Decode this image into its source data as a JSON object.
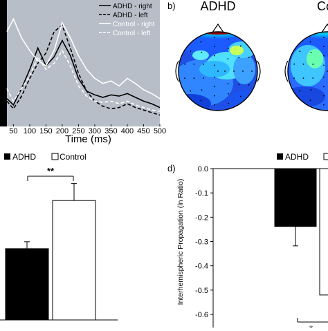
{
  "chart_data": [
    {
      "type": "line",
      "panel": "a",
      "xlabel": "Time (ms)",
      "xlim": [
        30,
        500
      ],
      "ylim": [
        0,
        1
      ],
      "background": "#b7bec8",
      "x_ticks": [
        50,
        100,
        150,
        200,
        250,
        300,
        350,
        400,
        450,
        500
      ],
      "x": [
        30,
        50,
        75,
        100,
        125,
        150,
        175,
        200,
        225,
        250,
        275,
        300,
        325,
        350,
        375,
        400,
        425,
        450,
        475,
        500
      ],
      "series": [
        {
          "name": "ADHD - right",
          "color": "#000000",
          "style": "solid",
          "values": [
            0.22,
            0.17,
            0.3,
            0.45,
            0.62,
            0.48,
            0.55,
            0.68,
            0.56,
            0.38,
            0.28,
            0.25,
            0.23,
            0.25,
            0.24,
            0.26,
            0.23,
            0.2,
            0.18,
            0.15
          ]
        },
        {
          "name": "ADHD - left",
          "color": "#000000",
          "style": "dashed",
          "values": [
            0.2,
            0.14,
            0.24,
            0.38,
            0.5,
            0.58,
            0.75,
            0.8,
            0.62,
            0.42,
            0.28,
            0.2,
            0.16,
            0.14,
            0.15,
            0.18,
            0.15,
            0.13,
            0.11,
            0.09
          ]
        },
        {
          "name": "Control - right",
          "color": "#ffffff",
          "style": "solid",
          "values": [
            0.75,
            0.85,
            0.7,
            0.6,
            0.52,
            0.48,
            0.6,
            0.82,
            0.7,
            0.56,
            0.45,
            0.38,
            0.34,
            0.36,
            0.32,
            0.38,
            0.34,
            0.29,
            0.26,
            0.22
          ]
        },
        {
          "name": "Control - left",
          "color": "#ffffff",
          "style": "dashed",
          "values": [
            0.3,
            0.2,
            0.3,
            0.4,
            0.55,
            0.45,
            0.5,
            0.6,
            0.48,
            0.32,
            0.24,
            0.2,
            0.19,
            0.2,
            0.18,
            0.2,
            0.17,
            0.15,
            0.13,
            0.12
          ]
        }
      ]
    },
    {
      "type": "heatmap",
      "panel": "b",
      "panel_label": "b)",
      "maps": [
        {
          "title": "ADHD"
        },
        {
          "title": "Co"
        }
      ]
    },
    {
      "type": "bar",
      "panel": "c",
      "categories": [
        "ADHD",
        "Control"
      ],
      "values": [
        0.37,
        0.62
      ],
      "errors": [
        0.036,
        0.088
      ],
      "ylim": [
        0,
        0.8
      ],
      "colors": [
        "#000000",
        "#ffffff"
      ],
      "legend": [
        "ADHD",
        "Control"
      ],
      "significance": "**"
    },
    {
      "type": "bar",
      "panel": "d",
      "panel_label": "d)",
      "ylabel": "Interhemispheric Propagation (ln Ratio)",
      "yticks": [
        "0.0",
        "-0.1",
        "-0.2",
        "-0.3",
        "-0.4",
        "-0.5",
        "-0.6"
      ],
      "ylim": [
        -0.6,
        0
      ],
      "categories": [
        "ADHD",
        "Control"
      ],
      "values": [
        -0.238,
        -0.52
      ],
      "errors": [
        0.08,
        0.1
      ],
      "colors": [
        "#000000",
        "#ffffff"
      ],
      "legend": [
        "ADHD",
        ""
      ],
      "significance": "*"
    }
  ]
}
